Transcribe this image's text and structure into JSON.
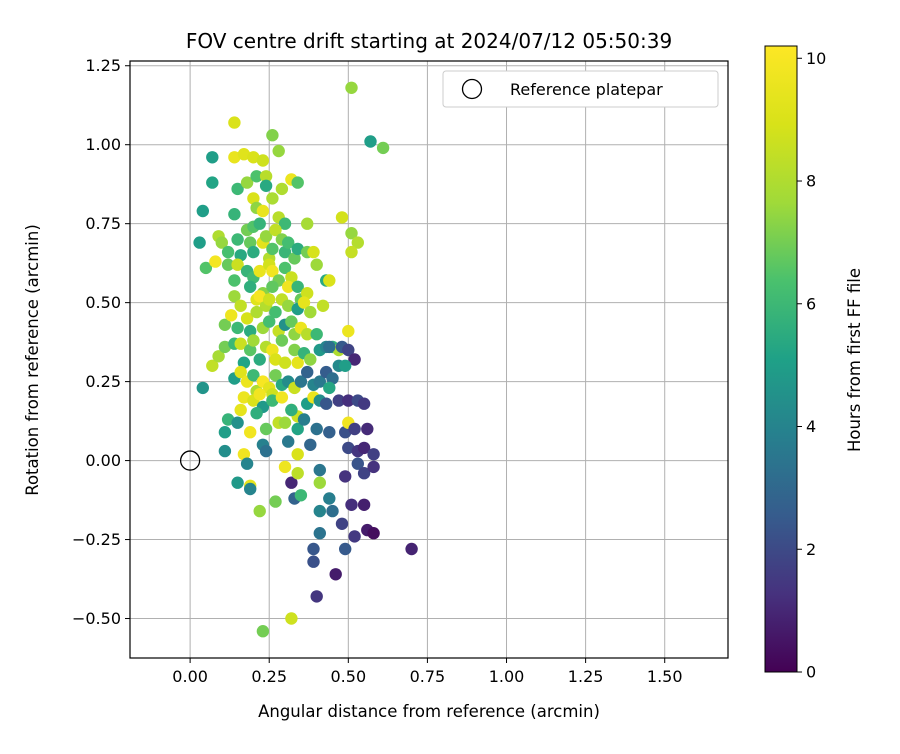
{
  "chart_data": {
    "type": "scatter",
    "title": "FOV centre drift starting at 2024/07/12 05:50:39",
    "xlabel": "Angular distance from reference (arcmin)",
    "ylabel": "Rotation from reference (arcmin)",
    "xlim": [
      -0.19,
      1.7
    ],
    "ylim": [
      -0.625,
      1.265
    ],
    "x_ticks": [
      0.0,
      0.25,
      0.5,
      0.75,
      1.0,
      1.25,
      1.5
    ],
    "x_tick_labels": [
      "0.00",
      "0.25",
      "0.50",
      "0.75",
      "1.00",
      "1.25",
      "1.50"
    ],
    "y_ticks": [
      -0.5,
      -0.25,
      0.0,
      0.25,
      0.5,
      0.75,
      1.0,
      1.25
    ],
    "y_tick_labels": [
      "−0.50",
      "−0.25",
      "0.00",
      "0.25",
      "0.50",
      "0.75",
      "1.00",
      "1.25"
    ],
    "grid": true,
    "legend": {
      "placement": "top-right",
      "entries": [
        "Reference platepar"
      ]
    },
    "colorbar": {
      "label": "Hours from first FF file",
      "range": [
        0,
        10.2
      ],
      "ticks": [
        0,
        2,
        4,
        6,
        8,
        10
      ],
      "tick_labels": [
        "0",
        "2",
        "4",
        "6",
        "8",
        "10"
      ],
      "colormap": "viridis"
    },
    "reference": {
      "x": 0.0,
      "y": 0.0,
      "marker": "open-circle"
    },
    "points": [
      [
        0.51,
        1.18,
        7.5
      ],
      [
        0.57,
        1.01,
        5.0
      ],
      [
        0.61,
        0.99,
        7.0
      ],
      [
        0.14,
        1.07,
        9.0
      ],
      [
        0.26,
        1.03,
        7.2
      ],
      [
        0.28,
        0.98,
        7.5
      ],
      [
        0.07,
        0.96,
        5.0
      ],
      [
        0.14,
        0.96,
        9.5
      ],
      [
        0.17,
        0.97,
        9.2
      ],
      [
        0.2,
        0.96,
        9.0
      ],
      [
        0.23,
        0.95,
        8.7
      ],
      [
        0.07,
        0.88,
        5.2
      ],
      [
        0.15,
        0.86,
        6.0
      ],
      [
        0.18,
        0.88,
        7.5
      ],
      [
        0.21,
        0.9,
        6.4
      ],
      [
        0.24,
        0.9,
        8.2
      ],
      [
        0.24,
        0.87,
        5.4
      ],
      [
        0.29,
        0.86,
        8.0
      ],
      [
        0.32,
        0.89,
        9.6
      ],
      [
        0.34,
        0.88,
        6.5
      ],
      [
        0.04,
        0.79,
        5.0
      ],
      [
        0.14,
        0.78,
        5.8
      ],
      [
        0.2,
        0.83,
        9.0
      ],
      [
        0.21,
        0.8,
        7.4
      ],
      [
        0.23,
        0.79,
        9.5
      ],
      [
        0.26,
        0.83,
        7.9
      ],
      [
        0.28,
        0.77,
        8.2
      ],
      [
        0.3,
        0.75,
        6.0
      ],
      [
        0.37,
        0.75,
        7.8
      ],
      [
        0.48,
        0.77,
        8.8
      ],
      [
        0.03,
        0.69,
        5.0
      ],
      [
        0.05,
        0.61,
        6.5
      ],
      [
        0.09,
        0.71,
        8.0
      ],
      [
        0.1,
        0.69,
        7.5
      ],
      [
        0.12,
        0.66,
        6.3
      ],
      [
        0.15,
        0.7,
        6.0
      ],
      [
        0.16,
        0.65,
        5.4
      ],
      [
        0.18,
        0.73,
        7.0
      ],
      [
        0.19,
        0.69,
        6.8
      ],
      [
        0.2,
        0.74,
        6.5
      ],
      [
        0.2,
        0.66,
        5.5
      ],
      [
        0.22,
        0.75,
        5.8
      ],
      [
        0.23,
        0.69,
        9.3
      ],
      [
        0.24,
        0.71,
        7.5
      ],
      [
        0.25,
        0.64,
        8.1
      ],
      [
        0.26,
        0.67,
        6.5
      ],
      [
        0.27,
        0.73,
        8.4
      ],
      [
        0.29,
        0.7,
        7.2
      ],
      [
        0.3,
        0.66,
        5.9
      ],
      [
        0.31,
        0.69,
        6.2
      ],
      [
        0.33,
        0.64,
        6.8
      ],
      [
        0.34,
        0.67,
        5.5
      ],
      [
        0.37,
        0.66,
        7.0
      ],
      [
        0.39,
        0.66,
        8.9
      ],
      [
        0.4,
        0.62,
        7.6
      ],
      [
        0.51,
        0.72,
        7.5
      ],
      [
        0.53,
        0.69,
        8.1
      ],
      [
        0.51,
        0.66,
        8.5
      ],
      [
        0.08,
        0.63,
        9.9
      ],
      [
        0.12,
        0.62,
        6.8
      ],
      [
        0.15,
        0.62,
        8.6
      ],
      [
        0.18,
        0.6,
        5.8
      ],
      [
        0.2,
        0.58,
        6.1
      ],
      [
        0.22,
        0.6,
        9.5
      ],
      [
        0.25,
        0.62,
        8.8
      ],
      [
        0.26,
        0.6,
        9.8
      ],
      [
        0.28,
        0.57,
        7.0
      ],
      [
        0.3,
        0.61,
        6.4
      ],
      [
        0.32,
        0.58,
        8.6
      ],
      [
        0.14,
        0.57,
        6.4
      ],
      [
        0.19,
        0.55,
        5.6
      ],
      [
        0.23,
        0.53,
        7.3
      ],
      [
        0.26,
        0.55,
        6.7
      ],
      [
        0.29,
        0.51,
        8.4
      ],
      [
        0.31,
        0.55,
        9.8
      ],
      [
        0.34,
        0.55,
        5.9
      ],
      [
        0.35,
        0.51,
        6.8
      ],
      [
        0.37,
        0.53,
        8.7
      ],
      [
        0.43,
        0.57,
        5.4
      ],
      [
        0.44,
        0.57,
        9.0
      ],
      [
        0.14,
        0.52,
        7.6
      ],
      [
        0.16,
        0.49,
        8.4
      ],
      [
        0.21,
        0.51,
        9.2
      ],
      [
        0.24,
        0.49,
        8.1
      ],
      [
        0.27,
        0.47,
        6.2
      ],
      [
        0.31,
        0.49,
        7.5
      ],
      [
        0.34,
        0.48,
        5.0
      ],
      [
        0.36,
        0.5,
        9.4
      ],
      [
        0.38,
        0.47,
        7.7
      ],
      [
        0.42,
        0.49,
        8.4
      ],
      [
        0.22,
        0.52,
        10.0
      ],
      [
        0.25,
        0.51,
        8.7
      ],
      [
        0.11,
        0.43,
        7.0
      ],
      [
        0.13,
        0.46,
        9.7
      ],
      [
        0.15,
        0.42,
        6.0
      ],
      [
        0.18,
        0.45,
        8.9
      ],
      [
        0.19,
        0.41,
        5.5
      ],
      [
        0.21,
        0.47,
        8.0
      ],
      [
        0.23,
        0.42,
        7.6
      ],
      [
        0.25,
        0.44,
        6.2
      ],
      [
        0.28,
        0.41,
        8.5
      ],
      [
        0.3,
        0.43,
        4.5
      ],
      [
        0.32,
        0.44,
        6.8
      ],
      [
        0.33,
        0.4,
        7.4
      ],
      [
        0.35,
        0.42,
        9.6
      ],
      [
        0.37,
        0.4,
        8.2
      ],
      [
        0.4,
        0.4,
        6.0
      ],
      [
        0.45,
        0.36,
        5.6
      ],
      [
        0.47,
        0.35,
        8.0
      ],
      [
        0.5,
        0.41,
        9.6
      ],
      [
        0.07,
        0.3,
        8.4
      ],
      [
        0.09,
        0.33,
        7.8
      ],
      [
        0.11,
        0.36,
        7.0
      ],
      [
        0.14,
        0.37,
        6.0
      ],
      [
        0.16,
        0.37,
        8.6
      ],
      [
        0.17,
        0.31,
        5.2
      ],
      [
        0.19,
        0.35,
        6.6
      ],
      [
        0.2,
        0.38,
        7.7
      ],
      [
        0.22,
        0.32,
        5.5
      ],
      [
        0.24,
        0.36,
        8.1
      ],
      [
        0.26,
        0.35,
        9.7
      ],
      [
        0.27,
        0.32,
        9.0
      ],
      [
        0.29,
        0.38,
        6.9
      ],
      [
        0.3,
        0.31,
        8.7
      ],
      [
        0.33,
        0.35,
        7.2
      ],
      [
        0.34,
        0.31,
        9.4
      ],
      [
        0.36,
        0.34,
        5.8
      ],
      [
        0.38,
        0.32,
        7.4
      ],
      [
        0.41,
        0.35,
        4.8
      ],
      [
        0.43,
        0.36,
        4.0
      ],
      [
        0.44,
        0.36,
        3.2
      ],
      [
        0.48,
        0.36,
        2.5
      ],
      [
        0.5,
        0.35,
        1.8
      ],
      [
        0.52,
        0.32,
        1.0
      ],
      [
        0.04,
        0.23,
        4.6
      ],
      [
        0.14,
        0.26,
        5.0
      ],
      [
        0.16,
        0.28,
        9.2
      ],
      [
        0.18,
        0.25,
        9.6
      ],
      [
        0.2,
        0.27,
        6.0
      ],
      [
        0.21,
        0.22,
        8.0
      ],
      [
        0.23,
        0.25,
        10.0
      ],
      [
        0.25,
        0.23,
        9.3
      ],
      [
        0.26,
        0.21,
        8.7
      ],
      [
        0.27,
        0.27,
        7.0
      ],
      [
        0.29,
        0.24,
        5.4
      ],
      [
        0.31,
        0.25,
        4.3
      ],
      [
        0.33,
        0.23,
        8.6
      ],
      [
        0.35,
        0.25,
        3.5
      ],
      [
        0.37,
        0.28,
        2.8
      ],
      [
        0.39,
        0.24,
        4.0
      ],
      [
        0.41,
        0.25,
        3.6
      ],
      [
        0.43,
        0.28,
        2.6
      ],
      [
        0.45,
        0.26,
        3.2
      ],
      [
        0.47,
        0.3,
        4.2
      ],
      [
        0.49,
        0.3,
        5.0
      ],
      [
        0.44,
        0.23,
        5.3
      ],
      [
        0.17,
        0.2,
        9.6
      ],
      [
        0.2,
        0.19,
        9.0
      ],
      [
        0.22,
        0.21,
        9.8
      ],
      [
        0.23,
        0.17,
        4.8
      ],
      [
        0.26,
        0.19,
        6.0
      ],
      [
        0.29,
        0.2,
        9.8
      ],
      [
        0.32,
        0.16,
        9.4
      ],
      [
        0.34,
        0.14,
        8.6
      ],
      [
        0.37,
        0.18,
        5.0
      ],
      [
        0.39,
        0.2,
        9.6
      ],
      [
        0.41,
        0.19,
        4.4
      ],
      [
        0.43,
        0.18,
        2.4
      ],
      [
        0.47,
        0.19,
        1.7
      ],
      [
        0.5,
        0.19,
        1.2
      ],
      [
        0.53,
        0.19,
        2.0
      ],
      [
        0.55,
        0.18,
        1.5
      ],
      [
        0.12,
        0.13,
        5.8
      ],
      [
        0.15,
        0.12,
        4.5
      ],
      [
        0.16,
        0.16,
        9.4
      ],
      [
        0.21,
        0.15,
        5.6
      ],
      [
        0.24,
        0.1,
        6.8
      ],
      [
        0.28,
        0.12,
        8.4
      ],
      [
        0.3,
        0.12,
        7.6
      ],
      [
        0.32,
        0.16,
        5.6
      ],
      [
        0.34,
        0.1,
        5.2
      ],
      [
        0.36,
        0.13,
        3.8
      ],
      [
        0.4,
        0.1,
        3.3
      ],
      [
        0.44,
        0.09,
        2.7
      ],
      [
        0.49,
        0.09,
        2.2
      ],
      [
        0.5,
        0.12,
        9.8
      ],
      [
        0.52,
        0.1,
        1.7
      ],
      [
        0.56,
        0.1,
        1.1
      ],
      [
        0.11,
        0.09,
        5.0
      ],
      [
        0.11,
        0.03,
        4.4
      ],
      [
        0.19,
        0.09,
        9.8
      ],
      [
        0.23,
        0.05,
        3.9
      ],
      [
        0.24,
        0.03,
        3.3
      ],
      [
        0.31,
        0.06,
        3.6
      ],
      [
        0.38,
        0.05,
        2.9
      ],
      [
        0.5,
        0.04,
        2.0
      ],
      [
        0.53,
        0.03,
        1.4
      ],
      [
        0.55,
        0.04,
        1.0
      ],
      [
        0.58,
        0.02,
        1.7
      ],
      [
        0.17,
        0.02,
        9.8
      ],
      [
        0.18,
        -0.01,
        4.0
      ],
      [
        0.3,
        -0.02,
        9.7
      ],
      [
        0.34,
        0.02,
        9.0
      ],
      [
        0.41,
        -0.03,
        3.5
      ],
      [
        0.53,
        -0.01,
        2.3
      ],
      [
        0.55,
        -0.04,
        1.8
      ],
      [
        0.58,
        -0.02,
        1.3
      ],
      [
        0.15,
        -0.07,
        4.8
      ],
      [
        0.19,
        -0.08,
        9.4
      ],
      [
        0.32,
        -0.07,
        1.0
      ],
      [
        0.34,
        -0.04,
        8.3
      ],
      [
        0.33,
        -0.12,
        2.8
      ],
      [
        0.35,
        -0.11,
        6.0
      ],
      [
        0.41,
        -0.07,
        7.6
      ],
      [
        0.44,
        -0.12,
        3.8
      ],
      [
        0.49,
        -0.05,
        1.3
      ],
      [
        0.19,
        -0.09,
        4.0
      ],
      [
        0.27,
        -0.13,
        7.0
      ],
      [
        0.22,
        -0.16,
        7.5
      ],
      [
        0.41,
        -0.16,
        4.0
      ],
      [
        0.45,
        -0.16,
        3.2
      ],
      [
        0.48,
        -0.2,
        1.8
      ],
      [
        0.51,
        -0.14,
        1.2
      ],
      [
        0.55,
        -0.14,
        0.8
      ],
      [
        0.41,
        -0.23,
        3.4
      ],
      [
        0.52,
        -0.24,
        1.5
      ],
      [
        0.56,
        -0.22,
        0.7
      ],
      [
        0.58,
        -0.23,
        0.3
      ],
      [
        0.39,
        -0.28,
        2.4
      ],
      [
        0.49,
        -0.28,
        2.5
      ],
      [
        0.7,
        -0.28,
        0.9
      ],
      [
        0.39,
        -0.32,
        2.2
      ],
      [
        0.46,
        -0.36,
        0.7
      ],
      [
        0.4,
        -0.43,
        1.4
      ],
      [
        0.23,
        -0.54,
        7.0
      ],
      [
        0.32,
        -0.5,
        8.7
      ]
    ]
  }
}
